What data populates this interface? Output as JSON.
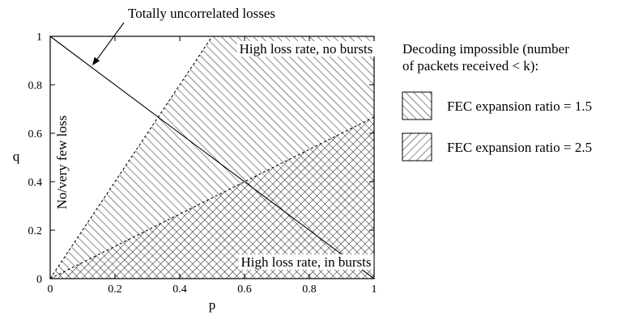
{
  "chart_data": {
    "type": "area",
    "xlabel": "p",
    "ylabel": "q",
    "xlim": [
      0,
      1
    ],
    "ylim": [
      0,
      1
    ],
    "xticks": [
      "0",
      "0.2",
      "0.4",
      "0.6",
      "0.8",
      "1"
    ],
    "yticks": [
      "0",
      "0.2",
      "0.4",
      "0.6",
      "0.8",
      "1"
    ],
    "grid": false,
    "regions": [
      {
        "name": "FEC expansion ratio = 1.5",
        "hatch": "backslash",
        "boundary": [
          [
            0,
            0
          ],
          [
            0.5,
            1
          ],
          [
            1,
            1
          ],
          [
            1,
            0
          ]
        ]
      },
      {
        "name": "FEC expansion ratio = 2.5",
        "hatch": "slash",
        "boundary": [
          [
            0,
            0
          ],
          [
            1,
            0.6667
          ],
          [
            1,
            0
          ]
        ]
      }
    ],
    "lines": [
      {
        "label": "Totally uncorrelated losses",
        "x": [
          0,
          1
        ],
        "y": [
          1,
          0
        ]
      },
      {
        "label": "",
        "style": "dashed",
        "x": [
          0,
          0.5
        ],
        "y": [
          0,
          1
        ]
      },
      {
        "label": "",
        "style": "dashed",
        "x": [
          0,
          1
        ],
        "y": [
          0,
          0.6667
        ]
      }
    ],
    "annotations": [
      {
        "text": "Totally uncorrelated losses",
        "arrow_to": [
          0.13,
          0.88
        ]
      },
      {
        "text": "High loss rate, no bursts",
        "at": [
          0.79,
          0.95
        ]
      },
      {
        "text": "No/very few loss",
        "at": [
          0.05,
          0.48
        ],
        "rotation": -90
      },
      {
        "text": "High loss rate, in bursts",
        "at": [
          0.79,
          0.07
        ]
      }
    ],
    "legend": {
      "position": "right",
      "title": [
        "Decoding impossible (number",
        "of packets received < k):"
      ],
      "entries": [
        "FEC expansion ratio = 1.5",
        "FEC expansion ratio = 2.5"
      ]
    }
  }
}
